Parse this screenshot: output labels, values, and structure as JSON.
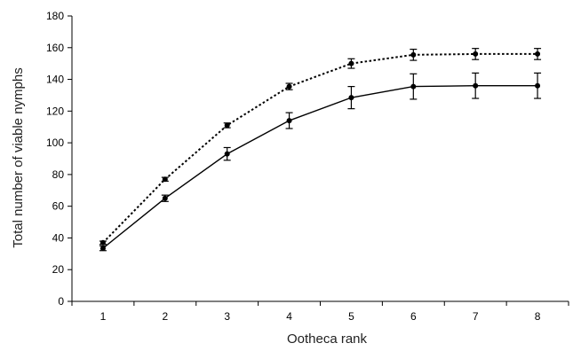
{
  "chart_data": {
    "type": "line",
    "title": "",
    "xlabel": "Ootheca rank",
    "ylabel": "Total number of viable nymphs",
    "x": [
      1,
      2,
      3,
      4,
      5,
      6,
      7,
      8
    ],
    "xlim": [
      0.5,
      8.5
    ],
    "ylim": [
      0,
      180
    ],
    "yticks": [
      0,
      20,
      40,
      60,
      80,
      100,
      120,
      140,
      160,
      180
    ],
    "grid": false,
    "legend": "none",
    "series": [
      {
        "style": "dotted",
        "color": "#000000",
        "values": [
          37,
          77,
          111,
          135.5,
          150,
          155.5,
          156,
          156
        ],
        "errors": [
          1,
          1.2,
          1.5,
          2,
          3,
          3.5,
          3.5,
          3.5
        ]
      },
      {
        "style": "solid",
        "color": "#000000",
        "values": [
          33.5,
          65,
          93,
          114,
          128.5,
          135.5,
          136,
          136
        ],
        "errors": [
          1.5,
          2,
          4,
          5,
          7,
          8,
          8,
          8
        ]
      }
    ]
  }
}
